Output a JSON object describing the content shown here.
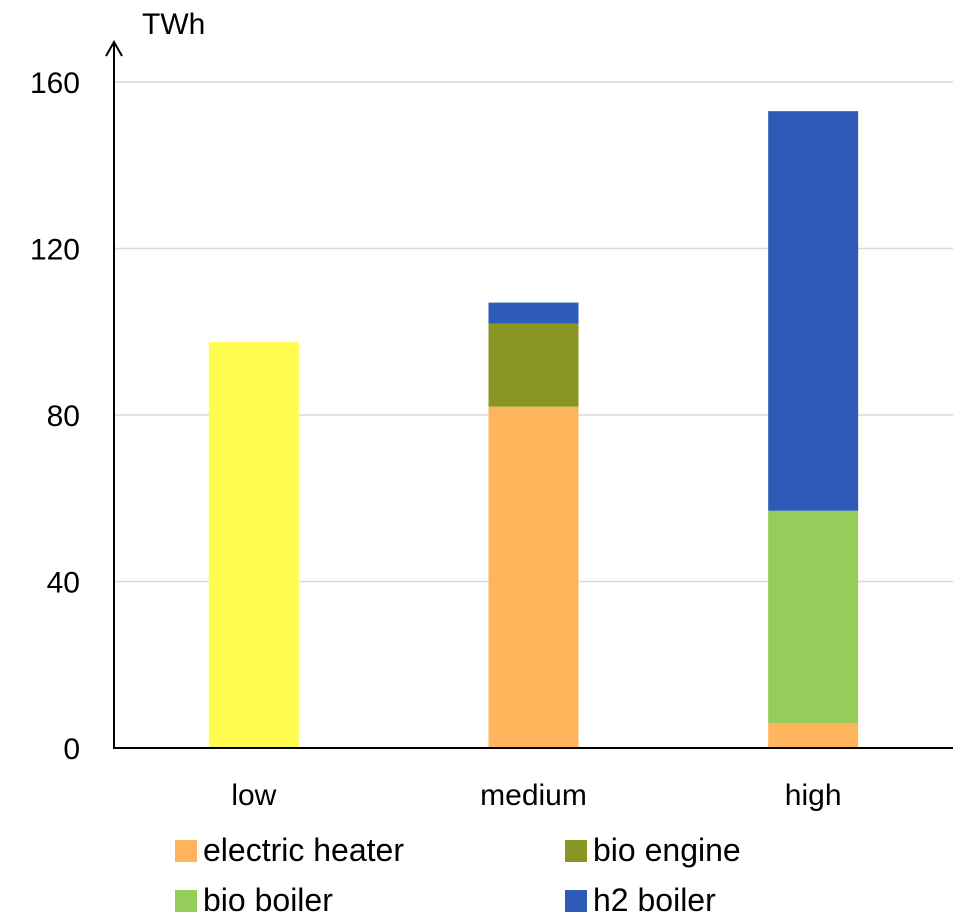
{
  "chart_data": {
    "type": "bar",
    "stacked": true,
    "unit_label": "TWh",
    "categories": [
      "low",
      "medium",
      "high"
    ],
    "ylim": [
      0,
      160
    ],
    "yticks": [
      0,
      40,
      80,
      120,
      160
    ],
    "grid": true,
    "legend_position": "bottom",
    "series": [
      {
        "name": "electric heater",
        "color": "#FFB55C",
        "values": [
          0,
          82,
          6
        ]
      },
      {
        "name": "bio engine",
        "color": "#8A9624",
        "values": [
          0,
          20,
          0
        ]
      },
      {
        "name": "bio boiler",
        "color": "#96CC5A",
        "values": [
          0,
          0,
          51
        ]
      },
      {
        "name": "h2 boiler",
        "color": "#2E5BB8",
        "values": [
          0,
          5,
          96
        ]
      },
      {
        "name": "",
        "color": "#FFFC4F",
        "values": [
          97.5,
          0,
          0
        ]
      }
    ]
  }
}
